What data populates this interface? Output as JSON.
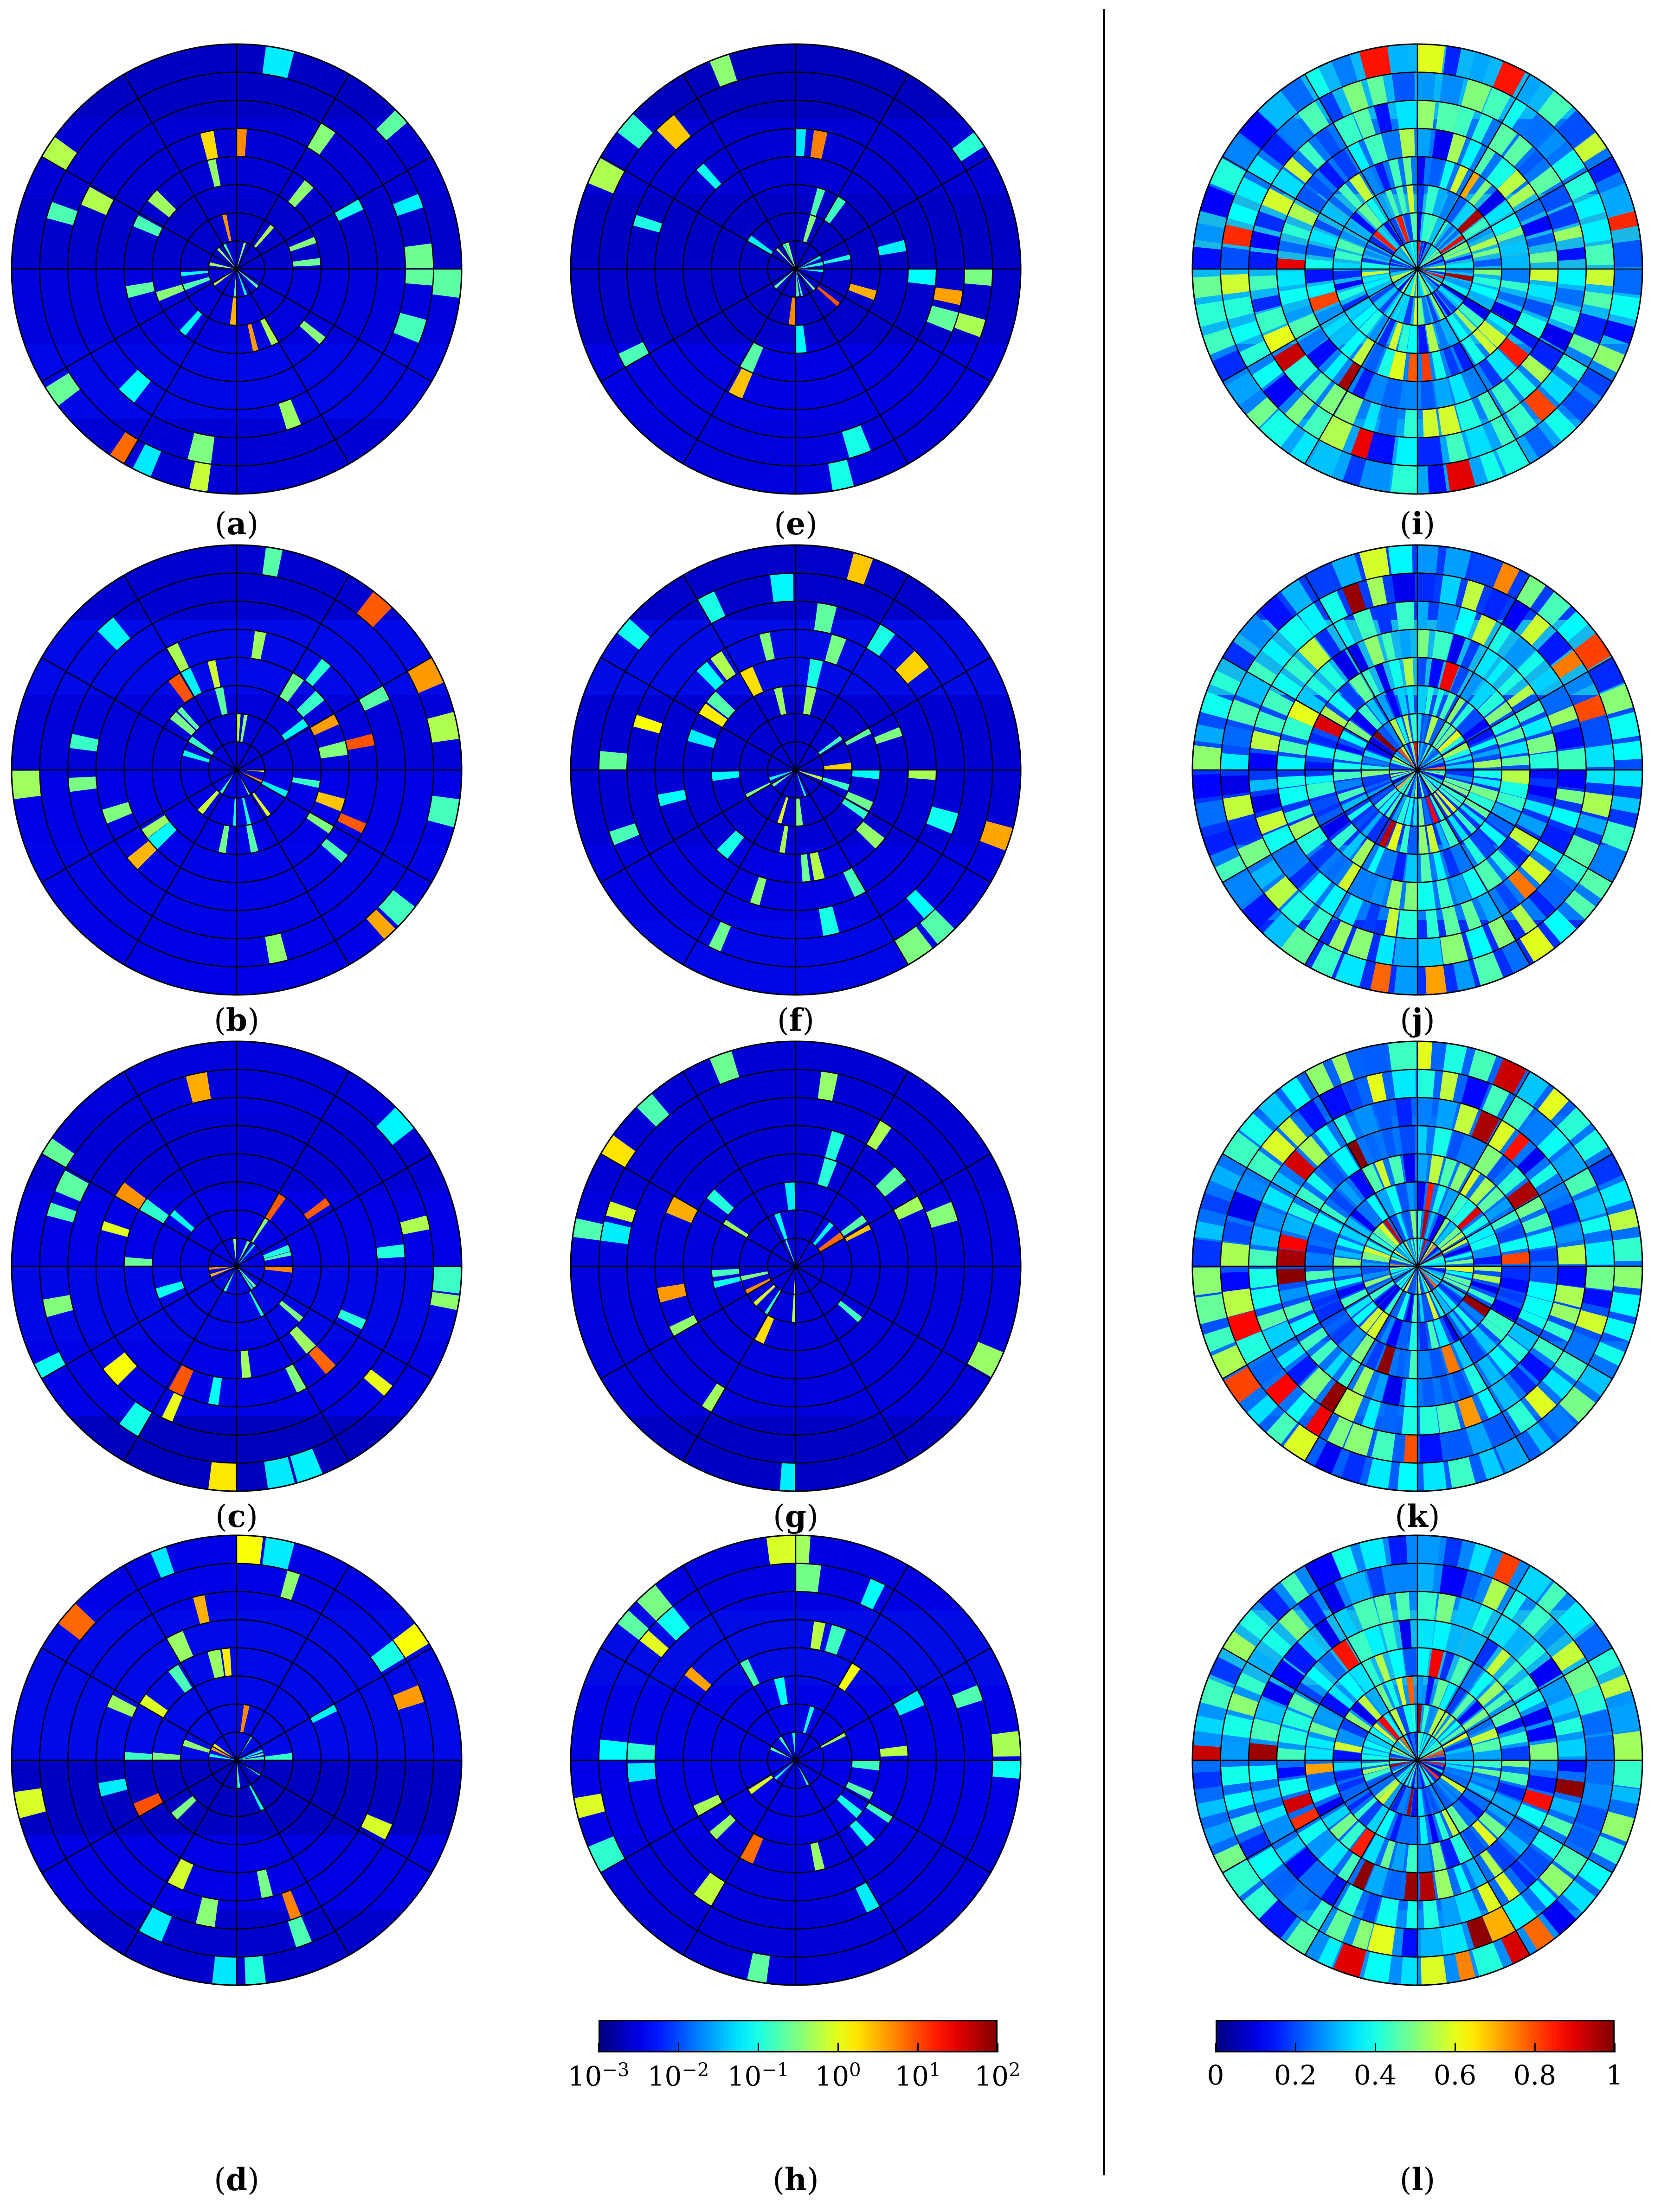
{
  "figure": {
    "panels": [
      {
        "id": "a",
        "label": "a",
        "scale": "log"
      },
      {
        "id": "b",
        "label": "b",
        "scale": "log"
      },
      {
        "id": "c",
        "label": "c",
        "scale": "log"
      },
      {
        "id": "d",
        "label": "d",
        "scale": "log"
      },
      {
        "id": "e",
        "label": "e",
        "scale": "log"
      },
      {
        "id": "f",
        "label": "f",
        "scale": "log"
      },
      {
        "id": "g",
        "label": "g",
        "scale": "log"
      },
      {
        "id": "h",
        "label": "h",
        "scale": "log"
      },
      {
        "id": "i",
        "label": "i",
        "scale": "linear"
      },
      {
        "id": "j",
        "label": "j",
        "scale": "linear"
      },
      {
        "id": "k",
        "label": "k",
        "scale": "linear"
      },
      {
        "id": "l",
        "label": "l",
        "scale": "linear"
      }
    ],
    "colors": {
      "jet_low": "#1a1aff",
      "jet_mid": "#3fe08a",
      "jet_high": "#e01010",
      "grid": "#000000"
    }
  },
  "chart_data": [
    {
      "type": "heatmap",
      "subtype": "polar",
      "panels": [
        "a",
        "b",
        "c",
        "d",
        "e",
        "f",
        "g",
        "h"
      ],
      "colorbar": {
        "scale": "log",
        "min": 0.001,
        "max": 100,
        "ticks": [
          {
            "base": "10",
            "exp": "−3",
            "value": 0.001
          },
          {
            "base": "10",
            "exp": "−2",
            "value": 0.01
          },
          {
            "base": "10",
            "exp": "−1",
            "value": 0.1
          },
          {
            "base": "10",
            "exp": "0",
            "value": 1
          },
          {
            "base": "10",
            "exp": "1",
            "value": 10
          },
          {
            "base": "10",
            "exp": "2",
            "value": 100
          }
        ]
      },
      "grid": {
        "radial_rings": 8,
        "angular_spokes": 12
      },
      "background_value": 0.001
    },
    {
      "type": "heatmap",
      "subtype": "polar",
      "panels": [
        "i",
        "j",
        "k",
        "l"
      ],
      "colorbar": {
        "scale": "linear",
        "min": 0,
        "max": 1,
        "ticks": [
          {
            "label": "0",
            "value": 0
          },
          {
            "label": "0.2",
            "value": 0.2
          },
          {
            "label": "0.4",
            "value": 0.4
          },
          {
            "label": "0.6",
            "value": 0.6
          },
          {
            "label": "0.8",
            "value": 0.8
          },
          {
            "label": "1",
            "value": 1
          }
        ]
      },
      "grid": {
        "radial_rings": 8,
        "angular_spokes": 12
      },
      "background_value": 0.2
    }
  ]
}
